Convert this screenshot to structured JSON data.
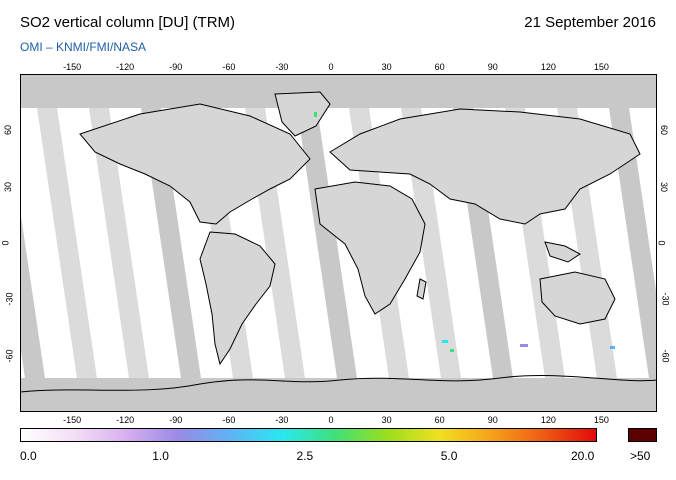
{
  "header": {
    "title": "SO2 vertical column [DU] (TRM)",
    "date": "21 September 2016",
    "source": "OMI  –  KNMI/FMI/NASA"
  },
  "map": {
    "lon_ticks": [
      "-150",
      "-120",
      "-90",
      "-60",
      "-30",
      "0",
      "30",
      "60",
      "90",
      "120",
      "150"
    ],
    "lat_ticks": [
      "60",
      "30",
      "0",
      "-30",
      "-60"
    ],
    "colors": {
      "land": "#d0d0d0",
      "swath": "#ffffff",
      "gap": "#bdbdbd",
      "orbit_dark": "#9a9a9a"
    }
  },
  "colorbar": {
    "labels": [
      "0.0",
      "1.0",
      "2.5",
      "5.0",
      "20.0"
    ],
    "overflow_label": ">50",
    "overflow_color": "#5a0000",
    "gradient": [
      "#ffffff",
      "#f3dff5",
      "#d8b0ef",
      "#9a8ae6",
      "#5fb3f5",
      "#29e8f0",
      "#3fe07a",
      "#9adf1c",
      "#f0e020",
      "#f6a21a",
      "#f05a14",
      "#e00a0a"
    ]
  }
}
